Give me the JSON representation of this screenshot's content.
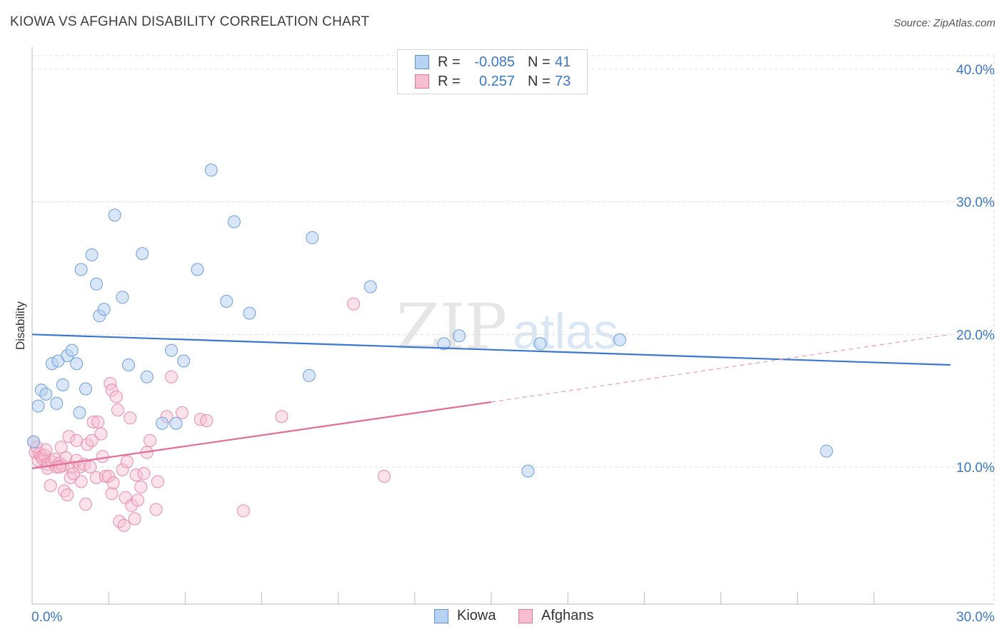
{
  "header": {
    "title": "KIOWA VS AFGHAN DISABILITY CORRELATION CHART",
    "source": "Source: ZipAtlas.com"
  },
  "legend_stats": [
    {
      "series": "Kiowa",
      "r_label": "R =",
      "r_value": "-0.085",
      "n_label": "N =",
      "n_value": "41"
    },
    {
      "series": "Afghans",
      "r_label": "R =",
      "r_value": "0.257",
      "n_label": "N =",
      "n_value": "73"
    }
  ],
  "chart_data": {
    "type": "scatter",
    "title": "KIOWA VS AFGHAN DISABILITY CORRELATION CHART",
    "xlabel": "",
    "ylabel": "Disability",
    "xlim": [
      0,
      30
    ],
    "ylim": [
      0,
      40
    ],
    "x_tick_labels": [
      "0.0%",
      "30.0%"
    ],
    "y_ticks": [
      10,
      20,
      30,
      40
    ],
    "y_tick_labels": [
      "10.0%",
      "20.0%",
      "30.0%",
      "40.0%"
    ],
    "grid": true,
    "legend": "bottom-center",
    "colors": {
      "kiowa": "#5b93d6",
      "kiowa_fill": "#b8d2f1",
      "afghans": "#e8739b",
      "afghans_fill": "#f6bfd1",
      "tick_text": "#3b78c4"
    },
    "series": [
      {
        "name": "Kiowa",
        "points": [
          [
            0.2,
            14.6
          ],
          [
            0.3,
            15.8
          ],
          [
            0.45,
            15.5
          ],
          [
            0.65,
            17.8
          ],
          [
            0.8,
            14.8
          ],
          [
            0.85,
            18.0
          ],
          [
            1.0,
            16.2
          ],
          [
            1.15,
            18.4
          ],
          [
            1.3,
            18.8
          ],
          [
            1.45,
            17.8
          ],
          [
            1.55,
            14.1
          ],
          [
            1.6,
            24.9
          ],
          [
            1.75,
            15.9
          ],
          [
            1.95,
            26.0
          ],
          [
            2.1,
            23.8
          ],
          [
            2.2,
            21.4
          ],
          [
            2.35,
            21.9
          ],
          [
            2.7,
            29.0
          ],
          [
            2.95,
            22.8
          ],
          [
            3.15,
            17.7
          ],
          [
            3.6,
            26.1
          ],
          [
            3.75,
            16.8
          ],
          [
            4.25,
            13.3
          ],
          [
            4.55,
            18.8
          ],
          [
            4.7,
            13.3
          ],
          [
            4.95,
            18.0
          ],
          [
            5.4,
            24.9
          ],
          [
            5.85,
            32.4
          ],
          [
            6.35,
            22.5
          ],
          [
            6.6,
            28.5
          ],
          [
            7.1,
            21.6
          ],
          [
            9.05,
            16.9
          ],
          [
            9.15,
            27.3
          ],
          [
            11.05,
            23.6
          ],
          [
            13.45,
            19.3
          ],
          [
            13.95,
            19.9
          ],
          [
            16.2,
            9.7
          ],
          [
            16.6,
            19.3
          ],
          [
            19.2,
            19.6
          ],
          [
            25.95,
            11.2
          ],
          [
            0.05,
            11.9
          ]
        ],
        "trend": {
          "x_from": 0,
          "y_from": 20.0,
          "x_to": 30,
          "y_to": 17.7,
          "style": "solid"
        }
      },
      {
        "name": "Afghans",
        "points": [
          [
            0.05,
            11.9
          ],
          [
            0.1,
            11.1
          ],
          [
            0.15,
            11.5
          ],
          [
            0.2,
            10.5
          ],
          [
            0.25,
            11.0
          ],
          [
            0.3,
            10.8
          ],
          [
            0.35,
            10.6
          ],
          [
            0.4,
            10.9
          ],
          [
            0.45,
            11.3
          ],
          [
            0.5,
            10.2
          ],
          [
            0.5,
            9.9
          ],
          [
            0.6,
            8.6
          ],
          [
            0.65,
            10.4
          ],
          [
            0.75,
            10.6
          ],
          [
            0.8,
            10.0
          ],
          [
            0.9,
            10.3
          ],
          [
            0.95,
            11.5
          ],
          [
            1.0,
            10.1
          ],
          [
            1.05,
            8.2
          ],
          [
            1.1,
            10.7
          ],
          [
            1.15,
            7.9
          ],
          [
            1.2,
            12.3
          ],
          [
            1.25,
            9.2
          ],
          [
            1.3,
            10.0
          ],
          [
            1.45,
            12.0
          ],
          [
            1.45,
            10.5
          ],
          [
            1.55,
            10.0
          ],
          [
            1.6,
            8.9
          ],
          [
            1.7,
            10.2
          ],
          [
            1.75,
            7.2
          ],
          [
            1.8,
            11.7
          ],
          [
            1.9,
            10.0
          ],
          [
            1.95,
            12.0
          ],
          [
            2.0,
            13.4
          ],
          [
            2.1,
            9.2
          ],
          [
            2.15,
            13.4
          ],
          [
            2.25,
            12.5
          ],
          [
            2.3,
            10.8
          ],
          [
            2.4,
            9.3
          ],
          [
            2.5,
            9.3
          ],
          [
            2.55,
            16.3
          ],
          [
            2.6,
            15.8
          ],
          [
            2.6,
            8.0
          ],
          [
            2.65,
            8.8
          ],
          [
            2.75,
            15.3
          ],
          [
            2.8,
            14.3
          ],
          [
            2.85,
            5.9
          ],
          [
            2.95,
            9.8
          ],
          [
            3.0,
            5.6
          ],
          [
            3.05,
            7.7
          ],
          [
            3.1,
            10.4
          ],
          [
            3.2,
            13.7
          ],
          [
            3.25,
            7.1
          ],
          [
            3.35,
            6.1
          ],
          [
            3.4,
            9.4
          ],
          [
            3.45,
            7.5
          ],
          [
            3.55,
            8.5
          ],
          [
            3.65,
            9.5
          ],
          [
            3.75,
            11.1
          ],
          [
            3.85,
            12.0
          ],
          [
            4.05,
            6.8
          ],
          [
            4.1,
            8.9
          ],
          [
            4.4,
            13.8
          ],
          [
            4.55,
            16.8
          ],
          [
            4.9,
            14.1
          ],
          [
            5.5,
            13.6
          ],
          [
            5.7,
            13.5
          ],
          [
            6.9,
            6.7
          ],
          [
            8.15,
            13.8
          ],
          [
            10.5,
            22.3
          ],
          [
            11.5,
            9.3
          ],
          [
            0.9,
            10.0
          ],
          [
            1.35,
            9.5
          ]
        ],
        "trend": {
          "x_from": 0,
          "y_from": 9.9,
          "x_to": 15.0,
          "y_to": 14.9,
          "style": "solid",
          "dashed_to": {
            "x": 30,
            "y": 20.0
          }
        }
      }
    ]
  }
}
